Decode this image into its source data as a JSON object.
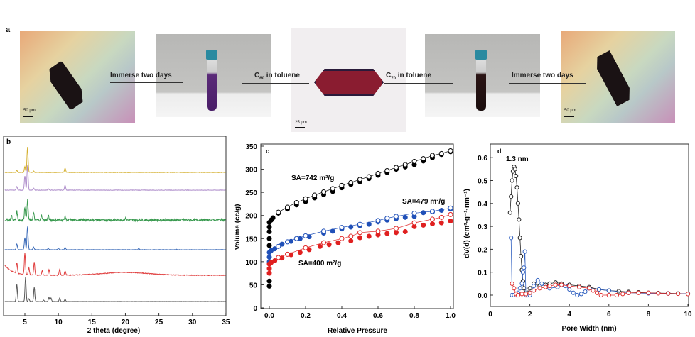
{
  "panel_a": {
    "label": "a",
    "left_arrow_text": "Immerse two days",
    "c60_text": "C60 in toluene",
    "c70_text": "C70 in toluene",
    "right_arrow_text": "Immerse two days",
    "scale_left": "50 μm",
    "scale_center": "25 μm",
    "scale_right": "50 μm"
  },
  "chart_data": [
    {
      "panel": "b",
      "type": "line",
      "xlabel": "2 theta (degree)",
      "ylabel": "",
      "xlim": [
        2,
        35
      ],
      "xticks": [
        5,
        10,
        15,
        20,
        25,
        30,
        35
      ],
      "series": [
        {
          "name": "yellow",
          "color": "#d4b030",
          "noise": 0.3,
          "peaks": [
            [
              3.8,
              3
            ],
            [
              5.0,
              8
            ],
            [
              5.4,
              36
            ],
            [
              6.3,
              2
            ],
            [
              11,
              6
            ]
          ]
        },
        {
          "name": "purple",
          "color": "#b090cc",
          "noise": 0.3,
          "peaks": [
            [
              3.8,
              5
            ],
            [
              5.0,
              20
            ],
            [
              5.4,
              35
            ],
            [
              6.3,
              3
            ],
            [
              8.5,
              2
            ],
            [
              11,
              7
            ]
          ]
        },
        {
          "name": "green",
          "color": "#3a9a50",
          "noise": 1.6,
          "peaks": [
            [
              3.0,
              6
            ],
            [
              3.8,
              12
            ],
            [
              5.0,
              18
            ],
            [
              5.4,
              28
            ],
            [
              6.3,
              10
            ],
            [
              7.5,
              6
            ],
            [
              8.5,
              6
            ],
            [
              11,
              5
            ],
            [
              20,
              3
            ]
          ]
        },
        {
          "name": "blue",
          "color": "#3a6ab8",
          "noise": 0.3,
          "peaks": [
            [
              3.8,
              8
            ],
            [
              5.0,
              17
            ],
            [
              5.4,
              33
            ],
            [
              6.3,
              4
            ],
            [
              8.5,
              2
            ],
            [
              10,
              2
            ],
            [
              11,
              3
            ],
            [
              22,
              2
            ],
            [
              27.6,
              1
            ]
          ]
        },
        {
          "name": "red",
          "color": "#e04040",
          "noise": 0.5,
          "peaks": [
            [
              3.8,
              15
            ],
            [
              5.0,
              30
            ],
            [
              5.6,
              10
            ],
            [
              6.4,
              18
            ],
            [
              7.6,
              6
            ],
            [
              8.6,
              8
            ],
            [
              10.2,
              9
            ],
            [
              11,
              6
            ]
          ],
          "hump": [
            20,
            4
          ]
        },
        {
          "name": "black",
          "color": "#555555",
          "noise": 0.1,
          "peaks": [
            [
              3.8,
              24
            ],
            [
              5.1,
              34
            ],
            [
              5.6,
              4
            ],
            [
              6.4,
              20
            ],
            [
              7.8,
              2
            ],
            [
              8.6,
              6
            ],
            [
              8.9,
              5
            ],
            [
              10.2,
              5
            ],
            [
              11,
              3
            ]
          ]
        }
      ]
    },
    {
      "panel": "c",
      "type": "scatter",
      "title": "",
      "xlabel": "Relative Pressure",
      "ylabel": "Volume (cc/g)",
      "xlim": [
        0,
        1
      ],
      "ylim": [
        0,
        350
      ],
      "xticks": [
        "0.0",
        "0.2",
        "0.4",
        "0.6",
        "0.8",
        "1.0"
      ],
      "yticks": [
        "0",
        "50",
        "100",
        "150",
        "200",
        "250",
        "300",
        "350"
      ],
      "annotations": [
        "SA=742 m²/g",
        "SA=479 m²/g",
        "SA=400 m²/g"
      ],
      "series": [
        {
          "name": "black-adsorption",
          "color": "#000000",
          "filled": true,
          "x": [
            0,
            0,
            0,
            0,
            0,
            0,
            0,
            0.01,
            0.02,
            0.05,
            0.1,
            0.15,
            0.2,
            0.25,
            0.3,
            0.35,
            0.4,
            0.45,
            0.5,
            0.55,
            0.6,
            0.65,
            0.7,
            0.75,
            0.8,
            0.85,
            0.9,
            0.95,
            1.0
          ],
          "y": [
            47,
            58,
            135,
            150,
            165,
            175,
            185,
            190,
            195,
            205,
            214,
            223,
            230,
            238,
            245,
            252,
            260,
            267,
            273,
            280,
            287,
            293,
            300,
            305,
            310,
            318,
            325,
            332,
            338
          ]
        },
        {
          "name": "black-desorption",
          "color": "#000000",
          "filled": false,
          "x": [
            0.05,
            0.1,
            0.15,
            0.2,
            0.25,
            0.3,
            0.35,
            0.4,
            0.45,
            0.5,
            0.55,
            0.6,
            0.65,
            0.7,
            0.75,
            0.8,
            0.85,
            0.9,
            0.95,
            1.0
          ],
          "y": [
            207,
            218,
            228,
            236,
            244,
            251,
            258,
            265,
            271,
            278,
            284,
            291,
            297,
            304,
            310,
            317,
            323,
            330,
            334,
            340
          ]
        },
        {
          "name": "blue-adsorption",
          "color": "#2050b8",
          "filled": true,
          "x": [
            0,
            0,
            0,
            0.01,
            0.03,
            0.07,
            0.12,
            0.17,
            0.22,
            0.3,
            0.35,
            0.4,
            0.45,
            0.5,
            0.55,
            0.6,
            0.65,
            0.7,
            0.75,
            0.8,
            0.85,
            0.9,
            0.95,
            1.0
          ],
          "y": [
            100,
            110,
            120,
            124,
            128,
            138,
            144,
            150,
            154,
            162,
            166,
            171,
            175,
            178,
            181,
            186,
            190,
            193,
            196,
            198,
            206,
            208,
            211,
            214
          ]
        },
        {
          "name": "blue-desorption",
          "color": "#2050b8",
          "filled": false,
          "x": [
            0.05,
            0.1,
            0.15,
            0.2,
            0.3,
            0.4,
            0.5,
            0.6,
            0.65,
            0.7,
            0.8,
            0.9,
            1.0
          ],
          "y": [
            133,
            143,
            150,
            156,
            166,
            174,
            181,
            189,
            194,
            198,
            205,
            209,
            216
          ]
        },
        {
          "name": "red-adsorption",
          "color": "#e02020",
          "filled": true,
          "x": [
            0,
            0,
            0,
            0.01,
            0.03,
            0.07,
            0.12,
            0.17,
            0.22,
            0.28,
            0.33,
            0.38,
            0.45,
            0.5,
            0.55,
            0.6,
            0.65,
            0.7,
            0.75,
            0.8,
            0.85,
            0.9,
            0.95,
            1.0
          ],
          "y": [
            75,
            85,
            95,
            98,
            102,
            108,
            115,
            120,
            126,
            133,
            137,
            141,
            145,
            152,
            155,
            158,
            161,
            163,
            165,
            176,
            179,
            182,
            184,
            188
          ]
        },
        {
          "name": "red-desorption",
          "color": "#e02020",
          "filled": false,
          "x": [
            0.05,
            0.1,
            0.2,
            0.3,
            0.4,
            0.45,
            0.5,
            0.6,
            0.7,
            0.8,
            0.9,
            0.95,
            1.0
          ],
          "y": [
            109,
            116,
            130,
            141,
            150,
            155,
            163,
            166,
            172,
            184,
            192,
            196,
            202
          ]
        }
      ]
    },
    {
      "panel": "d",
      "type": "line",
      "title": "",
      "xlabel": "Pore Width (nm)",
      "ylabel": "dV(d) (cm³·g⁻¹·nm⁻¹)",
      "xlim": [
        0,
        10
      ],
      "ylim": [
        -0.05,
        0.65
      ],
      "xticks": [
        "0",
        "2",
        "4",
        "6",
        "8",
        "10"
      ],
      "yticks": [
        "0.0",
        "0.1",
        "0.2",
        "0.3",
        "0.4",
        "0.5",
        "0.6"
      ],
      "annotation": "1.3 nm",
      "series": [
        {
          "name": "black",
          "color": "#222222",
          "x": [
            1.0,
            1.05,
            1.1,
            1.15,
            1.2,
            1.25,
            1.3,
            1.35,
            1.4,
            1.45,
            1.5,
            1.55,
            1.6,
            1.65,
            1.7,
            1.8,
            1.9,
            2.0,
            2.2,
            2.5,
            2.8,
            3.0,
            3.3,
            3.6,
            4.0,
            4.5,
            5.0,
            5.5,
            6.0,
            6.5,
            7.0,
            7.5,
            8.0,
            8.5,
            9.0,
            9.5,
            10.0
          ],
          "y": [
            0.36,
            0.43,
            0.5,
            0.54,
            0.56,
            0.55,
            0.52,
            0.47,
            0.4,
            0.33,
            0.25,
            0.17,
            0.11,
            0.06,
            0.03,
            0.0,
            0.01,
            0.03,
            0.05,
            0.04,
            0.045,
            0.05,
            0.055,
            0.05,
            0.045,
            0.04,
            0.035,
            0.025,
            0.02,
            0.017,
            0.014,
            0.012,
            0.01,
            0.009,
            0.008,
            0.007,
            0.006
          ]
        },
        {
          "name": "blue",
          "color": "#3060c0",
          "x": [
            1.05,
            1.1,
            1.2,
            1.3,
            1.4,
            1.5,
            1.6,
            1.65,
            1.7,
            1.75,
            1.8,
            1.9,
            2.0,
            2.2,
            2.4,
            2.6,
            2.8,
            3.0,
            3.4,
            3.8,
            4.0,
            4.2,
            4.4,
            4.6,
            4.8,
            5.0,
            5.5,
            6.0,
            7.0,
            8.0,
            9.0,
            10.0
          ],
          "y": [
            0.25,
            0.0,
            0.0,
            0.0,
            0.01,
            0.03,
            0.05,
            0.1,
            0.12,
            0.19,
            0.0,
            0.0,
            0.0,
            0.04,
            0.065,
            0.05,
            0.035,
            0.03,
            0.035,
            0.04,
            0.025,
            0.01,
            0.0,
            0.005,
            0.015,
            0.03,
            0.025,
            0.02,
            0.01,
            0.008,
            0.007,
            0.006
          ]
        },
        {
          "name": "red",
          "color": "#e03030",
          "x": [
            1.1,
            1.2,
            1.3,
            1.4,
            1.6,
            1.8,
            2.0,
            2.2,
            2.5,
            2.8,
            3.0,
            3.3,
            3.6,
            4.0,
            4.5,
            5.0,
            5.2,
            5.4,
            5.6,
            6.0,
            6.4,
            6.7,
            7.0,
            7.5,
            8.0,
            8.5,
            9.0,
            9.5,
            10.0
          ],
          "y": [
            0.05,
            0.03,
            0.005,
            0.0,
            0.005,
            0.005,
            0.01,
            0.02,
            0.03,
            0.035,
            0.04,
            0.045,
            0.045,
            0.04,
            0.035,
            0.03,
            0.02,
            0.01,
            0.0,
            0.0,
            0.0,
            0.005,
            0.01,
            0.01,
            0.01,
            0.008,
            0.007,
            0.006,
            0.005
          ]
        }
      ]
    }
  ]
}
